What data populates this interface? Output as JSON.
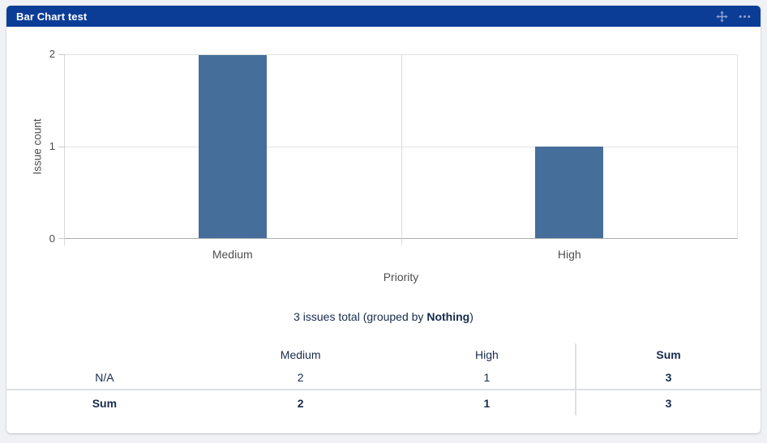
{
  "header": {
    "title": "Bar Chart test",
    "icons": [
      "move-icon",
      "more-options-icon"
    ]
  },
  "chart_data": {
    "type": "bar",
    "categories": [
      "Medium",
      "High"
    ],
    "values": [
      2,
      1
    ],
    "title": "",
    "xlabel": "Priority",
    "ylabel": "Issue count",
    "ylim": [
      0,
      2
    ],
    "yticks": [
      0,
      1,
      2
    ],
    "bar_color": "#456e9b",
    "grid": true,
    "legend": "none"
  },
  "summary": {
    "prefix": "3 issues total (grouped by ",
    "group_by": "Nothing",
    "suffix": ")"
  },
  "table": {
    "columns": [
      "",
      "Medium",
      "High",
      "Sum"
    ],
    "rows": [
      {
        "label": "N/A",
        "values": [
          "2",
          "1",
          "3"
        ]
      },
      {
        "label": "Sum",
        "values": [
          "2",
          "1",
          "3"
        ]
      }
    ]
  },
  "colors": {
    "header_bg": "#0c3d96",
    "header_text": "#ffffff",
    "header_icon": "#93a0cd",
    "bar": "#456e9b",
    "table_text": "#172b4d",
    "page_bg": "#f0f1f4",
    "gridline": "#e2e2e2"
  }
}
